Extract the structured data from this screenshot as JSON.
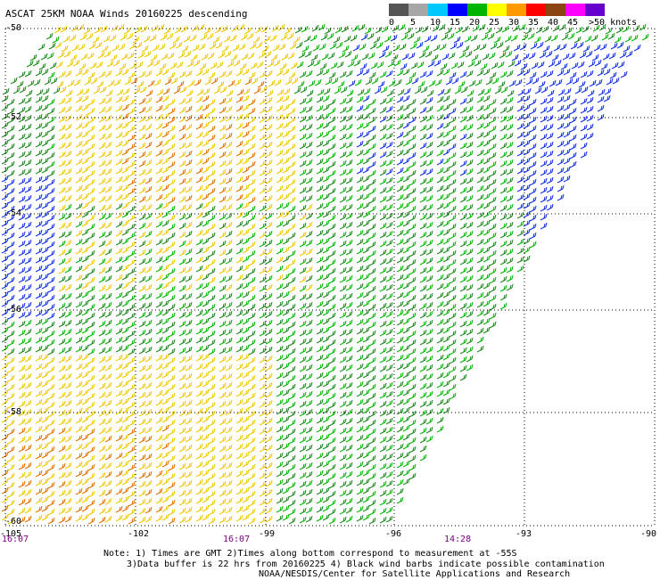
{
  "title": "ASCAT 25KM NOAA Winds 20160225 descending",
  "legend": {
    "labels": [
      "0",
      "5",
      "10",
      "15",
      "20",
      "25",
      "30",
      "35",
      "40",
      "45",
      ">50 knots"
    ],
    "colors": [
      "#555555",
      "#a6a6a6",
      "#00c8ff",
      "#0000ff",
      "#00b400",
      "#ffff00",
      "#ff9900",
      "#ff0000",
      "#8b4513",
      "#ff00ff",
      "#6600cc"
    ]
  },
  "axes": {
    "lat_labels": [
      "-50",
      "-52",
      "-54",
      "-56",
      "-58",
      "-60"
    ],
    "lon_labels": [
      "-105",
      "-102",
      "-99",
      "-96",
      "-93",
      "-90"
    ]
  },
  "times": [
    "16:07",
    "16:07",
    "14:28"
  ],
  "notes": {
    "line1": "Note: 1) Times are GMT 2)Times along bottom correspond to measurement at -55S",
    "line2": "3)Data buffer is 22 hrs from 20160225 4) Black wind barbs indicate possible contamination",
    "line3": "NOAA/NESDIS/Center for Satellite Applications and Research"
  }
}
